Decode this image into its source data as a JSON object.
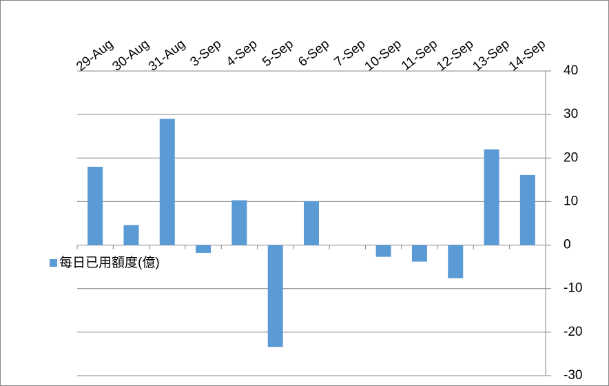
{
  "chart_data": {
    "type": "bar",
    "categories": [
      "29-Aug",
      "30-Aug",
      "31-Aug",
      "3-Sep",
      "4-Sep",
      "5-Sep",
      "6-Sep",
      "7-Sep",
      "10-Sep",
      "11-Sep",
      "12-Sep",
      "13-Sep",
      "14-Sep"
    ],
    "series": [
      {
        "name": "每日已用額度(億)",
        "color": "#5b9bd5",
        "values": [
          18,
          4.6,
          29,
          -1.8,
          10.3,
          -23.4,
          10.1,
          0,
          -2.7,
          -3.8,
          -7.6,
          22,
          16.1
        ]
      }
    ],
    "ylim": [
      -30,
      40
    ],
    "yticks": [
      -30,
      -20,
      -10,
      0,
      10,
      20,
      30,
      40
    ],
    "grid": true,
    "legend": "left",
    "y_axis_side": "right"
  }
}
